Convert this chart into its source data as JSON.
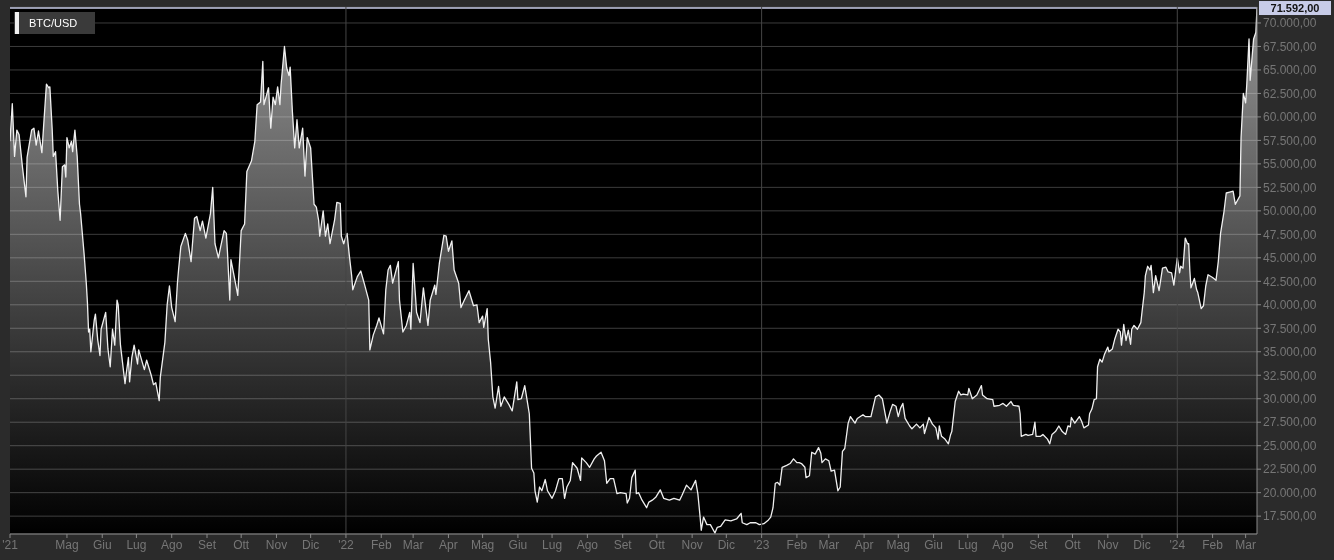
{
  "chart_data": {
    "type": "area",
    "x": [
      "2021-03-12",
      "2021-03-14",
      "2021-03-16",
      "2021-03-18",
      "2021-03-20",
      "2021-03-23",
      "2021-03-26",
      "2021-03-27",
      "2021-03-31",
      "2021-04-02",
      "2021-04-04",
      "2021-04-06",
      "2021-04-09",
      "2021-04-11",
      "2021-04-13",
      "2021-04-15",
      "2021-04-16",
      "2021-04-18",
      "2021-04-19",
      "2021-04-21",
      "2021-04-23",
      "2021-04-25",
      "2021-04-27",
      "2021-04-29",
      "2021-04-30",
      "2021-05-01",
      "2021-05-03",
      "2021-05-05",
      "2021-05-06",
      "2021-05-08",
      "2021-05-10",
      "2021-05-12",
      "2021-05-13",
      "2021-05-16",
      "2021-05-18",
      "2021-05-19",
      "2021-05-20",
      "2021-05-21",
      "2021-05-22",
      "2021-05-25",
      "2021-05-26",
      "2021-05-28",
      "2021-05-30",
      "2021-05-31",
      "2021-06-04",
      "2021-06-06",
      "2021-06-08",
      "2021-06-10",
      "2021-06-12",
      "2021-06-14",
      "2021-06-15",
      "2021-06-17",
      "2021-06-21",
      "2021-06-22",
      "2021-06-24",
      "2021-06-25",
      "2021-06-27",
      "2021-06-29",
      "2021-07-02",
      "2021-07-03",
      "2021-07-08",
      "2021-07-10",
      "2021-07-14",
      "2021-07-16",
      "2021-07-18",
      "2021-07-21",
      "2021-07-22",
      "2021-07-26",
      "2021-07-28",
      "2021-07-30",
      "2021-08-01",
      "2021-08-04",
      "2021-08-06",
      "2021-08-07",
      "2021-08-09",
      "2021-08-13",
      "2021-08-15",
      "2021-08-18",
      "2021-08-21",
      "2021-08-23",
      "2021-08-26",
      "2021-08-28",
      "2021-08-31",
      "2021-09-04",
      "2021-09-06",
      "2021-09-08",
      "2021-09-11",
      "2021-09-13",
      "2021-09-16",
      "2021-09-18",
      "2021-09-19",
      "2021-09-21",
      "2021-09-22",
      "2021-09-26",
      "2021-09-28",
      "2021-10-01",
      "2021-10-04",
      "2021-10-06",
      "2021-10-10",
      "2021-10-13",
      "2021-10-15",
      "2021-10-18",
      "2021-10-20",
      "2021-10-21",
      "2021-10-25",
      "2021-10-27",
      "2021-10-29",
      "2021-10-31",
      "2021-11-02",
      "2021-11-04",
      "2021-11-05",
      "2021-11-08",
      "2021-11-10",
      "2021-11-12",
      "2021-11-13",
      "2021-11-15",
      "2021-11-17",
      "2021-11-19",
      "2021-11-21",
      "2021-11-24",
      "2021-11-26",
      "2021-11-28",
      "2021-12-01",
      "2021-12-04",
      "2021-12-06",
      "2021-12-08",
      "2021-12-09",
      "2021-12-12",
      "2021-12-14",
      "2021-12-16",
      "2021-12-18",
      "2021-12-22",
      "2021-12-24",
      "2021-12-27",
      "2021-12-28",
      "2021-12-30",
      "2022-01-02",
      "2022-01-04",
      "2022-01-06",
      "2022-01-07",
      "2022-01-11",
      "2022-01-14",
      "2022-01-17",
      "2022-01-21",
      "2022-01-22",
      "2022-01-25",
      "2022-01-28",
      "2022-01-30",
      "2022-02-03",
      "2022-02-05",
      "2022-02-07",
      "2022-02-09",
      "2022-02-11",
      "2022-02-16",
      "2022-02-17",
      "2022-02-20",
      "2022-02-23",
      "2022-02-26",
      "2022-02-27",
      "2022-03-01",
      "2022-03-03",
      "2022-03-04",
      "2022-03-07",
      "2022-03-10",
      "2022-03-14",
      "2022-03-16",
      "2022-03-20",
      "2022-03-21",
      "2022-03-24",
      "2022-03-28",
      "2022-03-30",
      "2022-04-01",
      "2022-04-04",
      "2022-04-06",
      "2022-04-10",
      "2022-04-12",
      "2022-04-15",
      "2022-04-19",
      "2022-04-23",
      "2022-04-26",
      "2022-04-28",
      "2022-05-01",
      "2022-05-02",
      "2022-05-05",
      "2022-05-06",
      "2022-05-08",
      "2022-05-10",
      "2022-05-12",
      "2022-05-15",
      "2022-05-17",
      "2022-05-20",
      "2022-05-24",
      "2022-05-27",
      "2022-05-31",
      "2022-06-01",
      "2022-06-04",
      "2022-06-07",
      "2022-06-09",
      "2022-06-11",
      "2022-06-13",
      "2022-06-15",
      "2022-06-16",
      "2022-06-18",
      "2022-06-20",
      "2022-06-22",
      "2022-06-25",
      "2022-06-27",
      "2022-07-01",
      "2022-07-04",
      "2022-07-07",
      "2022-07-10",
      "2022-07-12",
      "2022-07-14",
      "2022-07-17",
      "2022-07-19",
      "2022-07-23",
      "2022-07-26",
      "2022-07-27",
      "2022-07-31",
      "2022-08-03",
      "2022-08-07",
      "2022-08-09",
      "2022-08-13",
      "2022-08-16",
      "2022-08-18",
      "2022-08-21",
      "2022-08-24",
      "2022-08-27",
      "2022-08-30",
      "2022-09-04",
      "2022-09-05",
      "2022-09-07",
      "2022-09-09",
      "2022-09-12",
      "2022-09-13",
      "2022-09-15",
      "2022-09-18",
      "2022-09-22",
      "2022-09-24",
      "2022-09-27",
      "2022-09-30",
      "2022-10-04",
      "2022-10-07",
      "2022-10-12",
      "2022-10-16",
      "2022-10-21",
      "2022-10-23",
      "2022-10-27",
      "2022-10-31",
      "2022-11-04",
      "2022-11-06",
      "2022-11-08",
      "2022-11-09",
      "2022-11-11",
      "2022-11-14",
      "2022-11-17",
      "2022-11-21",
      "2022-11-23",
      "2022-11-26",
      "2022-11-30",
      "2022-12-05",
      "2022-12-10",
      "2022-12-14",
      "2022-12-15",
      "2022-12-19",
      "2022-12-22",
      "2022-12-27",
      "2022-12-30",
      "2023-01-03",
      "2023-01-07",
      "2023-01-09",
      "2023-01-11",
      "2023-01-13",
      "2023-01-15",
      "2023-01-17",
      "2023-01-19",
      "2023-01-23",
      "2023-01-26",
      "2023-01-29",
      "2023-02-01",
      "2023-02-03",
      "2023-02-05",
      "2023-02-08",
      "2023-02-09",
      "2023-02-12",
      "2023-02-14",
      "2023-02-17",
      "2023-02-20",
      "2023-02-22",
      "2023-02-23",
      "2023-02-26",
      "2023-03-01",
      "2023-03-03",
      "2023-03-06",
      "2023-03-09",
      "2023-03-11",
      "2023-03-13",
      "2023-03-15",
      "2023-03-18",
      "2023-03-20",
      "2023-03-24",
      "2023-03-26",
      "2023-03-31",
      "2023-04-02",
      "2023-04-07",
      "2023-04-11",
      "2023-04-14",
      "2023-04-17",
      "2023-04-21",
      "2023-04-24",
      "2023-04-26",
      "2023-04-29",
      "2023-05-01",
      "2023-05-03",
      "2023-05-05",
      "2023-05-07",
      "2023-05-11",
      "2023-05-13",
      "2023-05-17",
      "2023-05-20",
      "2023-05-23",
      "2023-05-24",
      "2023-05-28",
      "2023-05-31",
      "2023-06-03",
      "2023-06-05",
      "2023-06-06",
      "2023-06-08",
      "2023-06-11",
      "2023-06-14",
      "2023-06-16",
      "2023-06-17",
      "2023-06-20",
      "2023-06-23",
      "2023-06-25",
      "2023-06-27",
      "2023-07-01",
      "2023-07-02",
      "2023-07-05",
      "2023-07-09",
      "2023-07-13",
      "2023-07-14",
      "2023-07-18",
      "2023-07-23",
      "2023-07-24",
      "2023-07-29",
      "2023-08-01",
      "2023-08-04",
      "2023-08-08",
      "2023-08-10",
      "2023-08-15",
      "2023-08-16",
      "2023-08-17",
      "2023-08-21",
      "2023-08-23",
      "2023-08-27",
      "2023-08-29",
      "2023-08-30",
      "2023-09-03",
      "2023-09-05",
      "2023-09-09",
      "2023-09-11",
      "2023-09-13",
      "2023-09-16",
      "2023-09-19",
      "2023-09-22",
      "2023-09-25",
      "2023-09-27",
      "2023-09-29",
      "2023-09-30",
      "2023-10-03",
      "2023-10-07",
      "2023-10-09",
      "2023-10-11",
      "2023-10-15",
      "2023-10-16",
      "2023-10-18",
      "2023-10-20",
      "2023-10-22",
      "2023-10-23",
      "2023-10-25",
      "2023-10-27",
      "2023-10-29",
      "2023-11-01",
      "2023-11-02",
      "2023-11-05",
      "2023-11-07",
      "2023-11-10",
      "2023-11-12",
      "2023-11-13",
      "2023-11-15",
      "2023-11-17",
      "2023-11-19",
      "2023-11-21",
      "2023-11-22",
      "2023-11-24",
      "2023-11-27",
      "2023-11-30",
      "2023-12-01",
      "2023-12-03",
      "2023-12-04",
      "2023-12-06",
      "2023-12-08",
      "2023-12-09",
      "2023-12-11",
      "2023-12-13",
      "2023-12-16",
      "2023-12-19",
      "2023-12-22",
      "2023-12-24",
      "2023-12-27",
      "2023-12-29",
      "2024-01-01",
      "2024-01-03",
      "2024-01-04",
      "2024-01-06",
      "2024-01-08",
      "2024-01-10",
      "2024-01-11",
      "2024-01-12",
      "2024-01-13",
      "2024-01-16",
      "2024-01-18",
      "2024-01-19",
      "2024-01-22",
      "2024-01-24",
      "2024-01-26",
      "2024-01-28",
      "2024-02-01",
      "2024-02-04",
      "2024-02-06",
      "2024-02-08",
      "2024-02-11",
      "2024-02-13",
      "2024-02-16",
      "2024-02-19",
      "2024-02-21",
      "2024-02-25",
      "2024-02-26",
      "2024-02-28",
      "2024-03-01",
      "2024-03-02",
      "2024-03-04",
      "2024-03-05",
      "2024-03-08",
      "2024-03-10",
      "2024-03-11"
    ],
    "series": [
      {
        "name": "BTC/USD",
        "color": "#f0f0f0",
        "values": [
          57400,
          61400,
          55800,
          58600,
          58100,
          54600,
          51500,
          55700,
          58600,
          58800,
          57000,
          58500,
          56200,
          59900,
          63500,
          63100,
          63200,
          58800,
          55800,
          56300,
          52100,
          49000,
          54700,
          54900,
          53600,
          57800,
          56700,
          57400,
          56300,
          58600,
          55800,
          50700,
          49700,
          45500,
          42300,
          40200,
          37100,
          37400,
          35000,
          38400,
          39000,
          36300,
          34600,
          37400,
          39200,
          35300,
          33400,
          37400,
          35700,
          40500,
          40000,
          35700,
          31600,
          32600,
          34400,
          31800,
          34400,
          35700,
          33700,
          35200,
          33100,
          34100,
          32500,
          31500,
          31700,
          29800,
          32300,
          36000,
          40000,
          42000,
          39700,
          38200,
          42300,
          43700,
          46200,
          47600,
          46900,
          44600,
          49200,
          49400,
          47900,
          48900,
          47100,
          49700,
          52500,
          46500,
          45000,
          46200,
          47900,
          47600,
          45500,
          40500,
          44800,
          42300,
          41000,
          47900,
          48600,
          54200,
          55300,
          57400,
          61300,
          61600,
          65900,
          61300,
          63100,
          58800,
          62100,
          61300,
          63200,
          61300,
          63400,
          67500,
          65200,
          64400,
          65300,
          60500,
          56700,
          59700,
          56700,
          58800,
          53700,
          57800,
          56700,
          50700,
          50400,
          49000,
          47300,
          50000,
          47300,
          48600,
          46500,
          49000,
          50900,
          50800,
          47300,
          46500,
          47600,
          45200,
          43100,
          41600,
          43000,
          43600,
          42300,
          40500,
          35200,
          36800,
          37800,
          38600,
          36900,
          41600,
          43700,
          44200,
          42300,
          44600,
          40500,
          37100,
          37800,
          39200,
          37400,
          44400,
          41000,
          39200,
          38100,
          41800,
          37800,
          40500,
          42100,
          41100,
          44400,
          47400,
          47300,
          45700,
          46800,
          43700,
          42300,
          39700,
          40500,
          41500,
          39900,
          40000,
          38100,
          38800,
          37600,
          39600,
          36300,
          33900,
          30200,
          29000,
          31300,
          29200,
          30200,
          29400,
          28700,
          31800,
          29900,
          30000,
          31400,
          29900,
          28400,
          22600,
          22100,
          20200,
          19000,
          20600,
          20200,
          21400,
          20200,
          19400,
          20200,
          21500,
          21500,
          19400,
          20600,
          21300,
          23200,
          22600,
          21300,
          23700,
          23200,
          22700,
          23600,
          23900,
          24300,
          23400,
          21000,
          21500,
          21500,
          19900,
          20000,
          19900,
          18900,
          19400,
          21600,
          22400,
          19900,
          20000,
          19200,
          18400,
          19000,
          19200,
          19500,
          20300,
          19400,
          19200,
          19400,
          19200,
          19700,
          20800,
          20300,
          21300,
          19900,
          17400,
          16000,
          17400,
          16600,
          16600,
          15700,
          16300,
          16400,
          17100,
          17000,
          17200,
          17800,
          16800,
          16600,
          16800,
          16800,
          16600,
          16700,
          17100,
          17400,
          18400,
          21000,
          21100,
          20800,
          22700,
          22900,
          23100,
          23600,
          23200,
          23200,
          23100,
          22700,
          21600,
          21800,
          24300,
          24100,
          24800,
          24200,
          23200,
          23600,
          23400,
          22300,
          22400,
          20200,
          20600,
          24400,
          24700,
          27400,
          28100,
          27400,
          27900,
          28300,
          28100,
          28100,
          30200,
          30400,
          30000,
          27400,
          28700,
          29400,
          29200,
          28100,
          29000,
          29500,
          27900,
          27100,
          26800,
          27300,
          26900,
          27300,
          26300,
          28000,
          27300,
          26900,
          25700,
          27100,
          26000,
          25700,
          25200,
          26200,
          26500,
          29700,
          30800,
          30400,
          30500,
          30400,
          31100,
          30000,
          30400,
          31400,
          30400,
          30000,
          29900,
          29200,
          29300,
          29500,
          29200,
          29700,
          29300,
          29200,
          28400,
          26000,
          26200,
          26100,
          26200,
          27500,
          26000,
          26000,
          26200,
          25700,
          25200,
          26200,
          26500,
          27100,
          26500,
          26200,
          27100,
          27000,
          28000,
          27400,
          28100,
          27600,
          26900,
          27200,
          28400,
          28900,
          29900,
          30000,
          33400,
          34200,
          33900,
          34700,
          35500,
          35000,
          35300,
          36300,
          37400,
          37100,
          35700,
          37900,
          36200,
          37300,
          35800,
          37400,
          37800,
          37400,
          38100,
          39200,
          41300,
          43100,
          44100,
          43700,
          44200,
          41300,
          43100,
          41500,
          43900,
          44000,
          43500,
          43400,
          42100,
          45000,
          43400,
          44100,
          43900,
          47100,
          46500,
          46500,
          43700,
          41800,
          42800,
          41600,
          41300,
          39600,
          39900,
          42000,
          43200,
          42900,
          42600,
          44600,
          47600,
          49900,
          51900,
          52000,
          52100,
          50700,
          51600,
          57800,
          62500,
          61500,
          63400,
          68300,
          63900,
          68300,
          69000,
          71592
        ]
      }
    ],
    "xlim": [
      "2021-03-12",
      "2024-03-11"
    ],
    "xticks": [
      {
        "value": "2021-03-12",
        "label": "'21"
      },
      {
        "value": "2021-05-01",
        "label": "Mag"
      },
      {
        "value": "2021-06-01",
        "label": "Giu"
      },
      {
        "value": "2021-07-01",
        "label": "Lug"
      },
      {
        "value": "2021-08-01",
        "label": "Ago"
      },
      {
        "value": "2021-09-01",
        "label": "Set"
      },
      {
        "value": "2021-10-01",
        "label": "Ott"
      },
      {
        "value": "2021-11-01",
        "label": "Nov"
      },
      {
        "value": "2021-12-01",
        "label": "Dic"
      },
      {
        "value": "2022-01-01",
        "label": "'22"
      },
      {
        "value": "2022-02-01",
        "label": "Feb"
      },
      {
        "value": "2022-03-01",
        "label": "Mar"
      },
      {
        "value": "2022-04-01",
        "label": "Apr"
      },
      {
        "value": "2022-05-01",
        "label": "Mag"
      },
      {
        "value": "2022-06-01",
        "label": "Giu"
      },
      {
        "value": "2022-07-01",
        "label": "Lug"
      },
      {
        "value": "2022-08-01",
        "label": "Ago"
      },
      {
        "value": "2022-09-01",
        "label": "Set"
      },
      {
        "value": "2022-10-01",
        "label": "Ott"
      },
      {
        "value": "2022-11-01",
        "label": "Nov"
      },
      {
        "value": "2022-12-01",
        "label": "Dic"
      },
      {
        "value": "2023-01-01",
        "label": "'23"
      },
      {
        "value": "2023-02-01",
        "label": "Feb"
      },
      {
        "value": "2023-03-01",
        "label": "Mar"
      },
      {
        "value": "2023-04-01",
        "label": "Apr"
      },
      {
        "value": "2023-05-01",
        "label": "Mag"
      },
      {
        "value": "2023-06-01",
        "label": "Giu"
      },
      {
        "value": "2023-07-01",
        "label": "Lug"
      },
      {
        "value": "2023-08-01",
        "label": "Ago"
      },
      {
        "value": "2023-09-01",
        "label": "Set"
      },
      {
        "value": "2023-10-01",
        "label": "Ott"
      },
      {
        "value": "2023-11-01",
        "label": "Nov"
      },
      {
        "value": "2023-12-01",
        "label": "Dic"
      },
      {
        "value": "2024-01-01",
        "label": "'24"
      },
      {
        "value": "2024-02-01",
        "label": "Feb"
      },
      {
        "value": "2024-03-01",
        "label": "Mar"
      }
    ],
    "ylim": [
      15600,
      71700
    ],
    "yticks": [
      {
        "value": 17500,
        "label": "17.500,00"
      },
      {
        "value": 20000,
        "label": "20.000,00"
      },
      {
        "value": 22500,
        "label": "22.500,00"
      },
      {
        "value": 25000,
        "label": "25.000,00"
      },
      {
        "value": 27500,
        "label": "27.500,00"
      },
      {
        "value": 30000,
        "label": "30.000,00"
      },
      {
        "value": 32500,
        "label": "32.500,00"
      },
      {
        "value": 35000,
        "label": "35.000,00"
      },
      {
        "value": 37500,
        "label": "37.500,00"
      },
      {
        "value": 40000,
        "label": "40.000,00"
      },
      {
        "value": 42500,
        "label": "42.500,00"
      },
      {
        "value": 45000,
        "label": "45.000,00"
      },
      {
        "value": 47500,
        "label": "47.500,00"
      },
      {
        "value": 50000,
        "label": "50.000,00"
      },
      {
        "value": 52500,
        "label": "52.500,00"
      },
      {
        "value": 55000,
        "label": "55.000,00"
      },
      {
        "value": 57500,
        "label": "57.500,00"
      },
      {
        "value": 60000,
        "label": "60.000,00"
      },
      {
        "value": 62500,
        "label": "62.500,00"
      },
      {
        "value": 65000,
        "label": "65.000,00"
      },
      {
        "value": 67500,
        "label": "67.500,00"
      },
      {
        "value": 70000,
        "label": "70.000,00"
      }
    ],
    "grid": "y",
    "legend": "top left",
    "ref_lines": [
      {
        "axis": "y",
        "value": 71592,
        "label": "71.592,00",
        "color": "#c8cce8"
      },
      {
        "axis": "x",
        "value": "2022-01-01",
        "color": "#454545"
      },
      {
        "axis": "x",
        "value": "2023-01-01",
        "color": "#454545"
      },
      {
        "axis": "x",
        "value": "2024-01-01",
        "color": "#454545"
      }
    ]
  }
}
